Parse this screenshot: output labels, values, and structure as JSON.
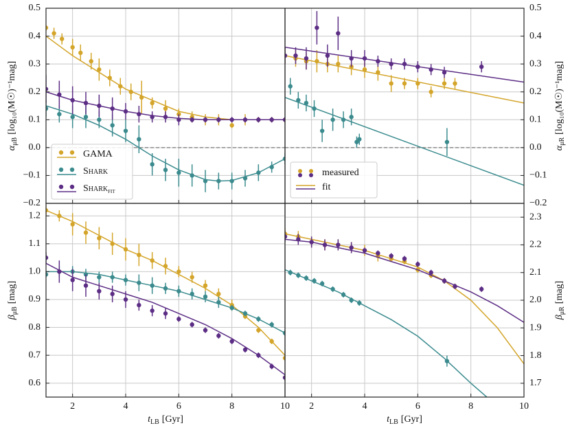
{
  "chart_data": [
    {
      "type": "scatter",
      "grid": true,
      "xtick_labels": false,
      "yaxis_side": "left",
      "hline": 0,
      "legend": "lower left",
      "xlim": [
        1,
        10
      ],
      "xticks": [
        2,
        4,
        6,
        8,
        10
      ],
      "ylim": [
        -0.2,
        0.5
      ],
      "yticks": [
        {
          "value": -0.2,
          "label": "−0.2"
        },
        {
          "value": -0.1,
          "label": "−0.1"
        },
        {
          "value": 0,
          "label": "0.0"
        },
        0.1,
        0.2,
        0.3,
        0.4,
        0.5
      ],
      "ylabel": {
        "symbol": "α",
        "sub": "μB",
        "unit": "[log₁₀(M☉)⁻¹mag]"
      },
      "series": [
        {
          "name": "GAMA",
          "color": "#d4a52a",
          "x": [
            1,
            1.3,
            1.6,
            2,
            2.3,
            2.7,
            3,
            3.4,
            3.8,
            4.2,
            4.6,
            5,
            5.5,
            6,
            6.5,
            7,
            7.5,
            8,
            8.5,
            9,
            9.5,
            10
          ],
          "values": [
            0.43,
            0.41,
            0.39,
            0.36,
            0.34,
            0.31,
            0.28,
            0.25,
            0.22,
            0.2,
            0.18,
            0.16,
            0.14,
            0.12,
            0.11,
            0.1,
            0.1,
            0.08,
            0.1,
            0.1,
            0.1,
            0.1
          ],
          "errors": [
            0.01,
            0.02,
            0.02,
            0.03,
            0.03,
            0.03,
            0.04,
            0.03,
            0.03,
            0.03,
            0.06,
            0.02,
            0.03,
            0.02,
            0.02,
            0.02,
            0.02,
            0.01,
            0.02,
            0.01,
            0.01,
            0.01
          ],
          "fit": {
            "x": [
              1,
              2,
              3,
              4,
              5,
              6,
              7,
              8,
              9,
              10
            ],
            "values": [
              0.4,
              0.33,
              0.27,
              0.21,
              0.17,
              0.13,
              0.11,
              0.1,
              0.1,
              0.1
            ]
          }
        },
        {
          "name": "Shark",
          "color": "#3b8b8e",
          "x": [
            1,
            1.5,
            2,
            2.5,
            3,
            3.5,
            4,
            4.5,
            5,
            5.5,
            6,
            6.5,
            7,
            7.5,
            8,
            8.5,
            9,
            9.5,
            10
          ],
          "values": [
            0.14,
            0.12,
            0.11,
            0.11,
            0.1,
            0.08,
            0.06,
            0.03,
            -0.06,
            -0.08,
            -0.09,
            -0.1,
            -0.12,
            -0.12,
            -0.12,
            -0.11,
            -0.09,
            -0.07,
            -0.04
          ],
          "errors": [
            0.03,
            0.03,
            0.04,
            0.04,
            0.03,
            0.04,
            0.04,
            0.05,
            0.04,
            0.04,
            0.05,
            0.04,
            0.04,
            0.03,
            0.03,
            0.03,
            0.03,
            0.02,
            0.02
          ],
          "fit": {
            "x": [
              1,
              2,
              3,
              4,
              5,
              6,
              7,
              7.5,
              8,
              9,
              10
            ],
            "values": [
              0.15,
              0.12,
              0.08,
              0.03,
              -0.03,
              -0.08,
              -0.115,
              -0.12,
              -0.118,
              -0.09,
              -0.04
            ]
          }
        },
        {
          "name": "Shark",
          "subscript": "fit",
          "color": "#5c2d85",
          "x": [
            1,
            1.5,
            2,
            2.5,
            3,
            3.5,
            4,
            4.5,
            5,
            5.5,
            6,
            6.5,
            7,
            7.5,
            8,
            8.5,
            9,
            9.5,
            10
          ],
          "values": [
            0.21,
            0.19,
            0.17,
            0.16,
            0.15,
            0.14,
            0.13,
            0.12,
            0.11,
            0.11,
            0.1,
            0.1,
            0.1,
            0.1,
            0.1,
            0.1,
            0.1,
            0.1,
            0.1
          ],
          "errors": [
            0.05,
            0.05,
            0.05,
            0.04,
            0.04,
            0.04,
            0.03,
            0.03,
            0.02,
            0.02,
            0.02,
            0.01,
            0.01,
            0.01,
            0.01,
            0.01,
            0.01,
            0.01,
            0.01
          ],
          "fit": {
            "x": [
              1,
              2,
              3,
              4,
              5,
              6,
              7,
              8,
              9,
              10
            ],
            "values": [
              0.2,
              0.17,
              0.15,
              0.13,
              0.115,
              0.105,
              0.1,
              0.1,
              0.1,
              0.1
            ]
          }
        }
      ]
    },
    {
      "type": "scatter",
      "grid": true,
      "xtick_labels": false,
      "yaxis_side": "right",
      "hline": 0,
      "legend": "lower left",
      "legend_labels": [
        "measured",
        "fit"
      ],
      "xlim": [
        1,
        10
      ],
      "xticks": [
        2,
        4,
        6,
        8,
        10
      ],
      "ylim": [
        -0.2,
        0.5
      ],
      "yticks": [
        {
          "value": -0.2,
          "label": "−0.2"
        },
        {
          "value": -0.1,
          "label": "−0.1"
        },
        {
          "value": 0,
          "label": "0.0"
        },
        0.1,
        0.2,
        0.3,
        0.4,
        0.5
      ],
      "ylabel": {
        "symbol": "α",
        "sub": "μR",
        "unit": "[log₁₀(M☉)⁻¹mag]"
      },
      "series": [
        {
          "color": "#d4a52a",
          "x": [
            1,
            1.4,
            1.8,
            2.2,
            2.6,
            3,
            3.5,
            4,
            4.5,
            5,
            5.5,
            6,
            6.5,
            7,
            7.4
          ],
          "values": [
            0.33,
            0.32,
            0.31,
            0.31,
            0.3,
            0.3,
            0.29,
            0.28,
            0.27,
            0.23,
            0.23,
            0.23,
            0.2,
            0.23,
            0.23
          ],
          "errors": [
            0.03,
            0.03,
            0.03,
            0.04,
            0.03,
            0.03,
            0.03,
            0.03,
            0.03,
            0.03,
            0.02,
            0.02,
            0.02,
            0.02,
            0.02
          ],
          "fit": {
            "x": [
              1,
              10
            ],
            "values": [
              0.33,
              0.16
            ]
          }
        },
        {
          "color": "#3b8b8e",
          "x": [
            1.2,
            1.5,
            1.8,
            2.1,
            2.4,
            2.8,
            3.2,
            3.5,
            3.7,
            3.8,
            7.1
          ],
          "values": [
            0.22,
            0.17,
            0.16,
            0.14,
            0.06,
            0.1,
            0.1,
            0.11,
            0.02,
            0.03,
            0.02
          ],
          "errors": [
            0.03,
            0.03,
            0.03,
            0.03,
            0.04,
            0.04,
            0.03,
            0.03,
            0.02,
            0.02,
            0.05
          ],
          "fit": {
            "x": [
              1,
              10
            ],
            "values": [
              0.18,
              -0.135
            ]
          }
        },
        {
          "color": "#5c2d85",
          "x": [
            1,
            1.4,
            1.8,
            2.2,
            2.6,
            3,
            3.5,
            4,
            4.5,
            5,
            5.5,
            6,
            6.5,
            7,
            8.4
          ],
          "values": [
            0.33,
            0.33,
            0.32,
            0.43,
            0.33,
            0.41,
            0.32,
            0.32,
            0.31,
            0.3,
            0.3,
            0.29,
            0.28,
            0.27,
            0.29
          ],
          "errors": [
            0.03,
            0.03,
            0.04,
            0.06,
            0.04,
            0.06,
            0.03,
            0.03,
            0.02,
            0.02,
            0.02,
            0.02,
            0.02,
            0.02,
            0.02
          ],
          "fit": {
            "x": [
              1,
              10
            ],
            "values": [
              0.36,
              0.235
            ]
          }
        }
      ]
    },
    {
      "type": "scatter",
      "grid": true,
      "xtick_labels": true,
      "yaxis_side": "left",
      "xlim": [
        1,
        10
      ],
      "xticks": [
        2,
        4,
        6,
        8,
        10
      ],
      "ylim": [
        0.55,
        1.245
      ],
      "yticks": [
        0.6,
        0.7,
        0.8,
        0.9,
        {
          "value": 1,
          "label": "1.0"
        },
        1.1,
        1.2
      ],
      "xlabel": {
        "symbol": "t",
        "sub": "LB",
        "unit": "[Gyr]"
      },
      "ylabel": {
        "symbol": "β",
        "sub": "μB",
        "unit": "[mag]"
      },
      "series": [
        {
          "color": "#d4a52a",
          "x": [
            1,
            1.5,
            2,
            2.5,
            3,
            3.5,
            4,
            4.5,
            5,
            5.5,
            6,
            6.5,
            7,
            7.5,
            8,
            8.5,
            9,
            9.5,
            10
          ],
          "values": [
            1.22,
            1.2,
            1.17,
            1.14,
            1.12,
            1.1,
            1.08,
            1.06,
            1.04,
            1.02,
            1.0,
            0.98,
            0.95,
            0.92,
            0.88,
            0.84,
            0.79,
            0.75,
            0.69
          ],
          "errors": [
            0.02,
            0.02,
            0.04,
            0.04,
            0.04,
            0.04,
            0.04,
            0.04,
            0.03,
            0.03,
            0.02,
            0.02,
            0.02,
            0.02,
            0.02,
            0.01,
            0.01,
            0.01,
            0.01
          ],
          "fit": {
            "x": [
              1,
              2,
              3,
              4,
              5,
              6,
              7,
              8,
              9,
              10
            ],
            "values": [
              1.22,
              1.18,
              1.13,
              1.08,
              1.04,
              0.99,
              0.94,
              0.88,
              0.8,
              0.7
            ]
          }
        },
        {
          "color": "#3b8b8e",
          "x": [
            1,
            1.5,
            2,
            2.5,
            3,
            3.5,
            4,
            4.5,
            5,
            5.5,
            6,
            6.5,
            7,
            7.5,
            8,
            8.5,
            9,
            9.5,
            10
          ],
          "values": [
            0.99,
            1.0,
            1.0,
            0.99,
            0.98,
            0.98,
            0.97,
            0.96,
            0.95,
            0.94,
            0.93,
            0.92,
            0.91,
            0.89,
            0.87,
            0.85,
            0.83,
            0.81,
            0.78
          ],
          "errors": [
            0.01,
            0.02,
            0.02,
            0.02,
            0.02,
            0.02,
            0.02,
            0.03,
            0.03,
            0.02,
            0.02,
            0.02,
            0.02,
            0.02,
            0.01,
            0.01,
            0.01,
            0.01,
            0.01
          ],
          "fit": {
            "x": [
              1,
              2,
              3,
              4,
              5,
              6,
              7,
              8,
              9,
              10
            ],
            "values": [
              1.0,
              1.0,
              0.99,
              0.97,
              0.95,
              0.93,
              0.9,
              0.87,
              0.83,
              0.78
            ]
          }
        },
        {
          "color": "#5c2d85",
          "x": [
            1,
            1.5,
            2,
            2.5,
            3,
            3.5,
            4,
            4.5,
            5,
            5.5,
            6,
            6.5,
            7,
            7.5,
            8,
            8.5,
            9,
            9.5,
            10
          ],
          "values": [
            1.05,
            1.0,
            0.97,
            0.95,
            0.93,
            0.92,
            0.9,
            0.88,
            0.86,
            0.85,
            0.83,
            0.81,
            0.79,
            0.77,
            0.75,
            0.72,
            0.7,
            0.66,
            0.62
          ],
          "errors": [
            0.02,
            0.04,
            0.04,
            0.04,
            0.03,
            0.03,
            0.03,
            0.02,
            0.02,
            0.02,
            0.01,
            0.01,
            0.01,
            0.01,
            0.01,
            0.01,
            0.01,
            0.01,
            0.01
          ],
          "fit": {
            "x": [
              1,
              2,
              3,
              4,
              5,
              6,
              7,
              8,
              9,
              10
            ],
            "values": [
              1.03,
              0.98,
              0.95,
              0.92,
              0.89,
              0.85,
              0.81,
              0.76,
              0.7,
              0.63
            ]
          }
        }
      ]
    },
    {
      "type": "scatter",
      "grid": true,
      "xtick_labels": true,
      "yaxis_side": "right",
      "xlim": [
        1,
        10
      ],
      "xticks": [
        2,
        4,
        6,
        8,
        10
      ],
      "ylim": [
        1.65,
        2.35
      ],
      "yticks": [
        1.7,
        1.8,
        1.9,
        {
          "value": 2,
          "label": "2.0"
        },
        2.1,
        2.2,
        2.3
      ],
      "xlabel": {
        "symbol": "t",
        "sub": "LB",
        "unit": "[Gyr]"
      },
      "ylabel": {
        "symbol": "β",
        "sub": "μR",
        "unit": "[mag]"
      },
      "series": [
        {
          "color": "#d4a52a",
          "x": [
            1,
            1.5,
            2,
            2.5,
            3,
            3.5,
            4,
            4.5,
            5,
            5.5,
            6,
            6.5,
            7,
            7.4
          ],
          "values": [
            2.24,
            2.23,
            2.21,
            2.2,
            2.2,
            2.19,
            2.18,
            2.16,
            2.15,
            2.14,
            2.11,
            2.09,
            2.07,
            2.05
          ],
          "errors": [
            0.02,
            0.02,
            0.02,
            0.02,
            0.02,
            0.02,
            0.02,
            0.02,
            0.01,
            0.01,
            0.01,
            0.01,
            0.01,
            0.01
          ],
          "fit": {
            "x": [
              1,
              2,
              3,
              4,
              5,
              6,
              7,
              8,
              9,
              10
            ],
            "values": [
              2.24,
              2.22,
              2.2,
              2.18,
              2.15,
              2.12,
              2.07,
              2.0,
              1.9,
              1.77
            ]
          }
        },
        {
          "color": "#3b8b8e",
          "x": [
            1.2,
            1.5,
            1.8,
            2.1,
            2.4,
            2.8,
            3.2,
            3.5,
            3.8,
            7.1
          ],
          "values": [
            2.1,
            2.09,
            2.08,
            2.07,
            2.06,
            2.04,
            2.02,
            2.0,
            1.99,
            1.78
          ],
          "errors": [
            0.01,
            0.01,
            0.01,
            0.01,
            0.01,
            0.01,
            0.01,
            0.01,
            0.01,
            0.02
          ],
          "fit": {
            "x": [
              1,
              2,
              3,
              4,
              5,
              6,
              7,
              8,
              8.6
            ],
            "values": [
              2.11,
              2.07,
              2.03,
              1.98,
              1.93,
              1.87,
              1.79,
              1.7,
              1.65
            ]
          }
        },
        {
          "color": "#5c2d85",
          "x": [
            1,
            1.5,
            2,
            2.5,
            3,
            3.5,
            4,
            4.5,
            5,
            5.5,
            6,
            6.5,
            7,
            7.4,
            8.4
          ],
          "values": [
            2.23,
            2.22,
            2.21,
            2.2,
            2.2,
            2.19,
            2.18,
            2.17,
            2.16,
            2.15,
            2.13,
            2.1,
            2.07,
            2.05,
            2.04
          ],
          "errors": [
            0.02,
            0.02,
            0.02,
            0.02,
            0.02,
            0.02,
            0.01,
            0.01,
            0.01,
            0.01,
            0.01,
            0.01,
            0.01,
            0.01,
            0.01
          ],
          "fit": {
            "x": [
              1,
              2,
              3,
              4,
              5,
              6,
              7,
              8,
              9,
              10
            ],
            "values": [
              2.22,
              2.21,
              2.19,
              2.17,
              2.14,
              2.11,
              2.07,
              2.03,
              1.98,
              1.92
            ]
          }
        }
      ]
    }
  ]
}
